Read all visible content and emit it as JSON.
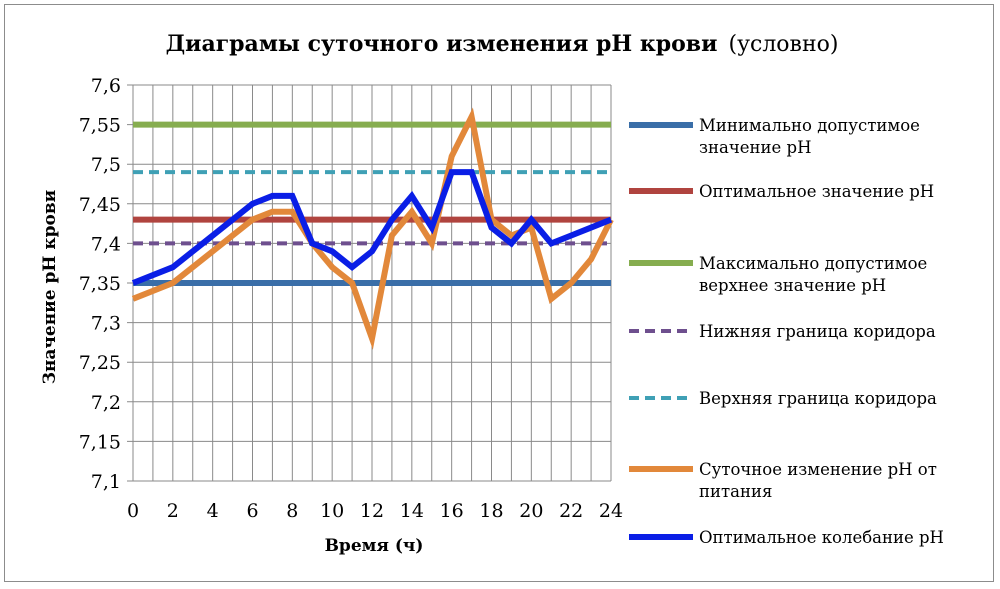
{
  "chart_data": {
    "type": "line",
    "title_bold": "Диаграмы суточного изменения pH крови",
    "title_normal": "(условно)",
    "xlabel": "Время (ч)",
    "ylabel": "Значение pH крови",
    "xlim": [
      0,
      24
    ],
    "ylim": [
      7.1,
      7.6
    ],
    "x_ticks": [
      "0",
      "2",
      "4",
      "6",
      "8",
      "10",
      "12",
      "14",
      "16",
      "18",
      "20",
      "22",
      "24"
    ],
    "y_ticks": [
      "7,1",
      "7,15",
      "7,2",
      "7,25",
      "7,3",
      "7,35",
      "7,4",
      "7,45",
      "7,5",
      "7,55",
      "7,6"
    ],
    "grid": true,
    "legend_position": "right",
    "series": [
      {
        "name": "Минимально допустимое значение pH",
        "color": "#3a6ea8",
        "style": "solid",
        "width": "thick",
        "x": [
          0,
          24
        ],
        "y": [
          7.35,
          7.35
        ]
      },
      {
        "name": "Оптимальное значение pH",
        "color": "#b0443f",
        "style": "solid",
        "width": "thick",
        "x": [
          0,
          24
        ],
        "y": [
          7.43,
          7.43
        ]
      },
      {
        "name": "Максимально допустимое верхнее значение pH",
        "color": "#86ad4f",
        "style": "solid",
        "width": "thick",
        "x": [
          0,
          24
        ],
        "y": [
          7.55,
          7.55
        ]
      },
      {
        "name": "Нижняя граница коридора",
        "color": "#6e4f8e",
        "style": "dashed",
        "width": "medium",
        "x": [
          0,
          24
        ],
        "y": [
          7.4,
          7.4
        ]
      },
      {
        "name": "Верхняя граница коридора",
        "color": "#3fa0b5",
        "style": "dashed",
        "width": "medium",
        "x": [
          0,
          24
        ],
        "y": [
          7.49,
          7.49
        ]
      },
      {
        "name": "Суточное изменение  pH от питания",
        "color": "#e2883a",
        "style": "solid",
        "width": "thick",
        "x": [
          0,
          2,
          4,
          6,
          7,
          8,
          9,
          10,
          11,
          12,
          13,
          14,
          15,
          16,
          17,
          18,
          19,
          20,
          21,
          22,
          23,
          24
        ],
        "y": [
          7.33,
          7.35,
          7.39,
          7.43,
          7.44,
          7.44,
          7.4,
          7.37,
          7.35,
          7.28,
          7.41,
          7.44,
          7.4,
          7.51,
          7.56,
          7.43,
          7.41,
          7.42,
          7.33,
          7.35,
          7.38,
          7.43
        ]
      },
      {
        "name": "Оптимальное колебание pH",
        "color": "#0a1ee6",
        "style": "solid",
        "width": "thick",
        "x": [
          0,
          2,
          4,
          6,
          7,
          8,
          9,
          10,
          11,
          12,
          13,
          14,
          15,
          16,
          17,
          18,
          19,
          20,
          21,
          22,
          23,
          24
        ],
        "y": [
          7.35,
          7.37,
          7.41,
          7.45,
          7.46,
          7.46,
          7.4,
          7.39,
          7.37,
          7.39,
          7.43,
          7.46,
          7.42,
          7.49,
          7.49,
          7.42,
          7.4,
          7.43,
          7.4,
          7.41,
          7.42,
          7.43
        ]
      }
    ],
    "legend_lines": [
      [
        "Минимально допустимое",
        "значение pH"
      ],
      [
        "Оптимальное значение pH"
      ],
      [
        "Максимально допустимое",
        "верхнее значение pH"
      ],
      [
        "Нижняя граница коридора"
      ],
      [
        "Верхняя граница коридора"
      ],
      [
        "Суточное изменение  pH от",
        "питания"
      ],
      [
        "Оптимальное колебание pH"
      ]
    ]
  }
}
